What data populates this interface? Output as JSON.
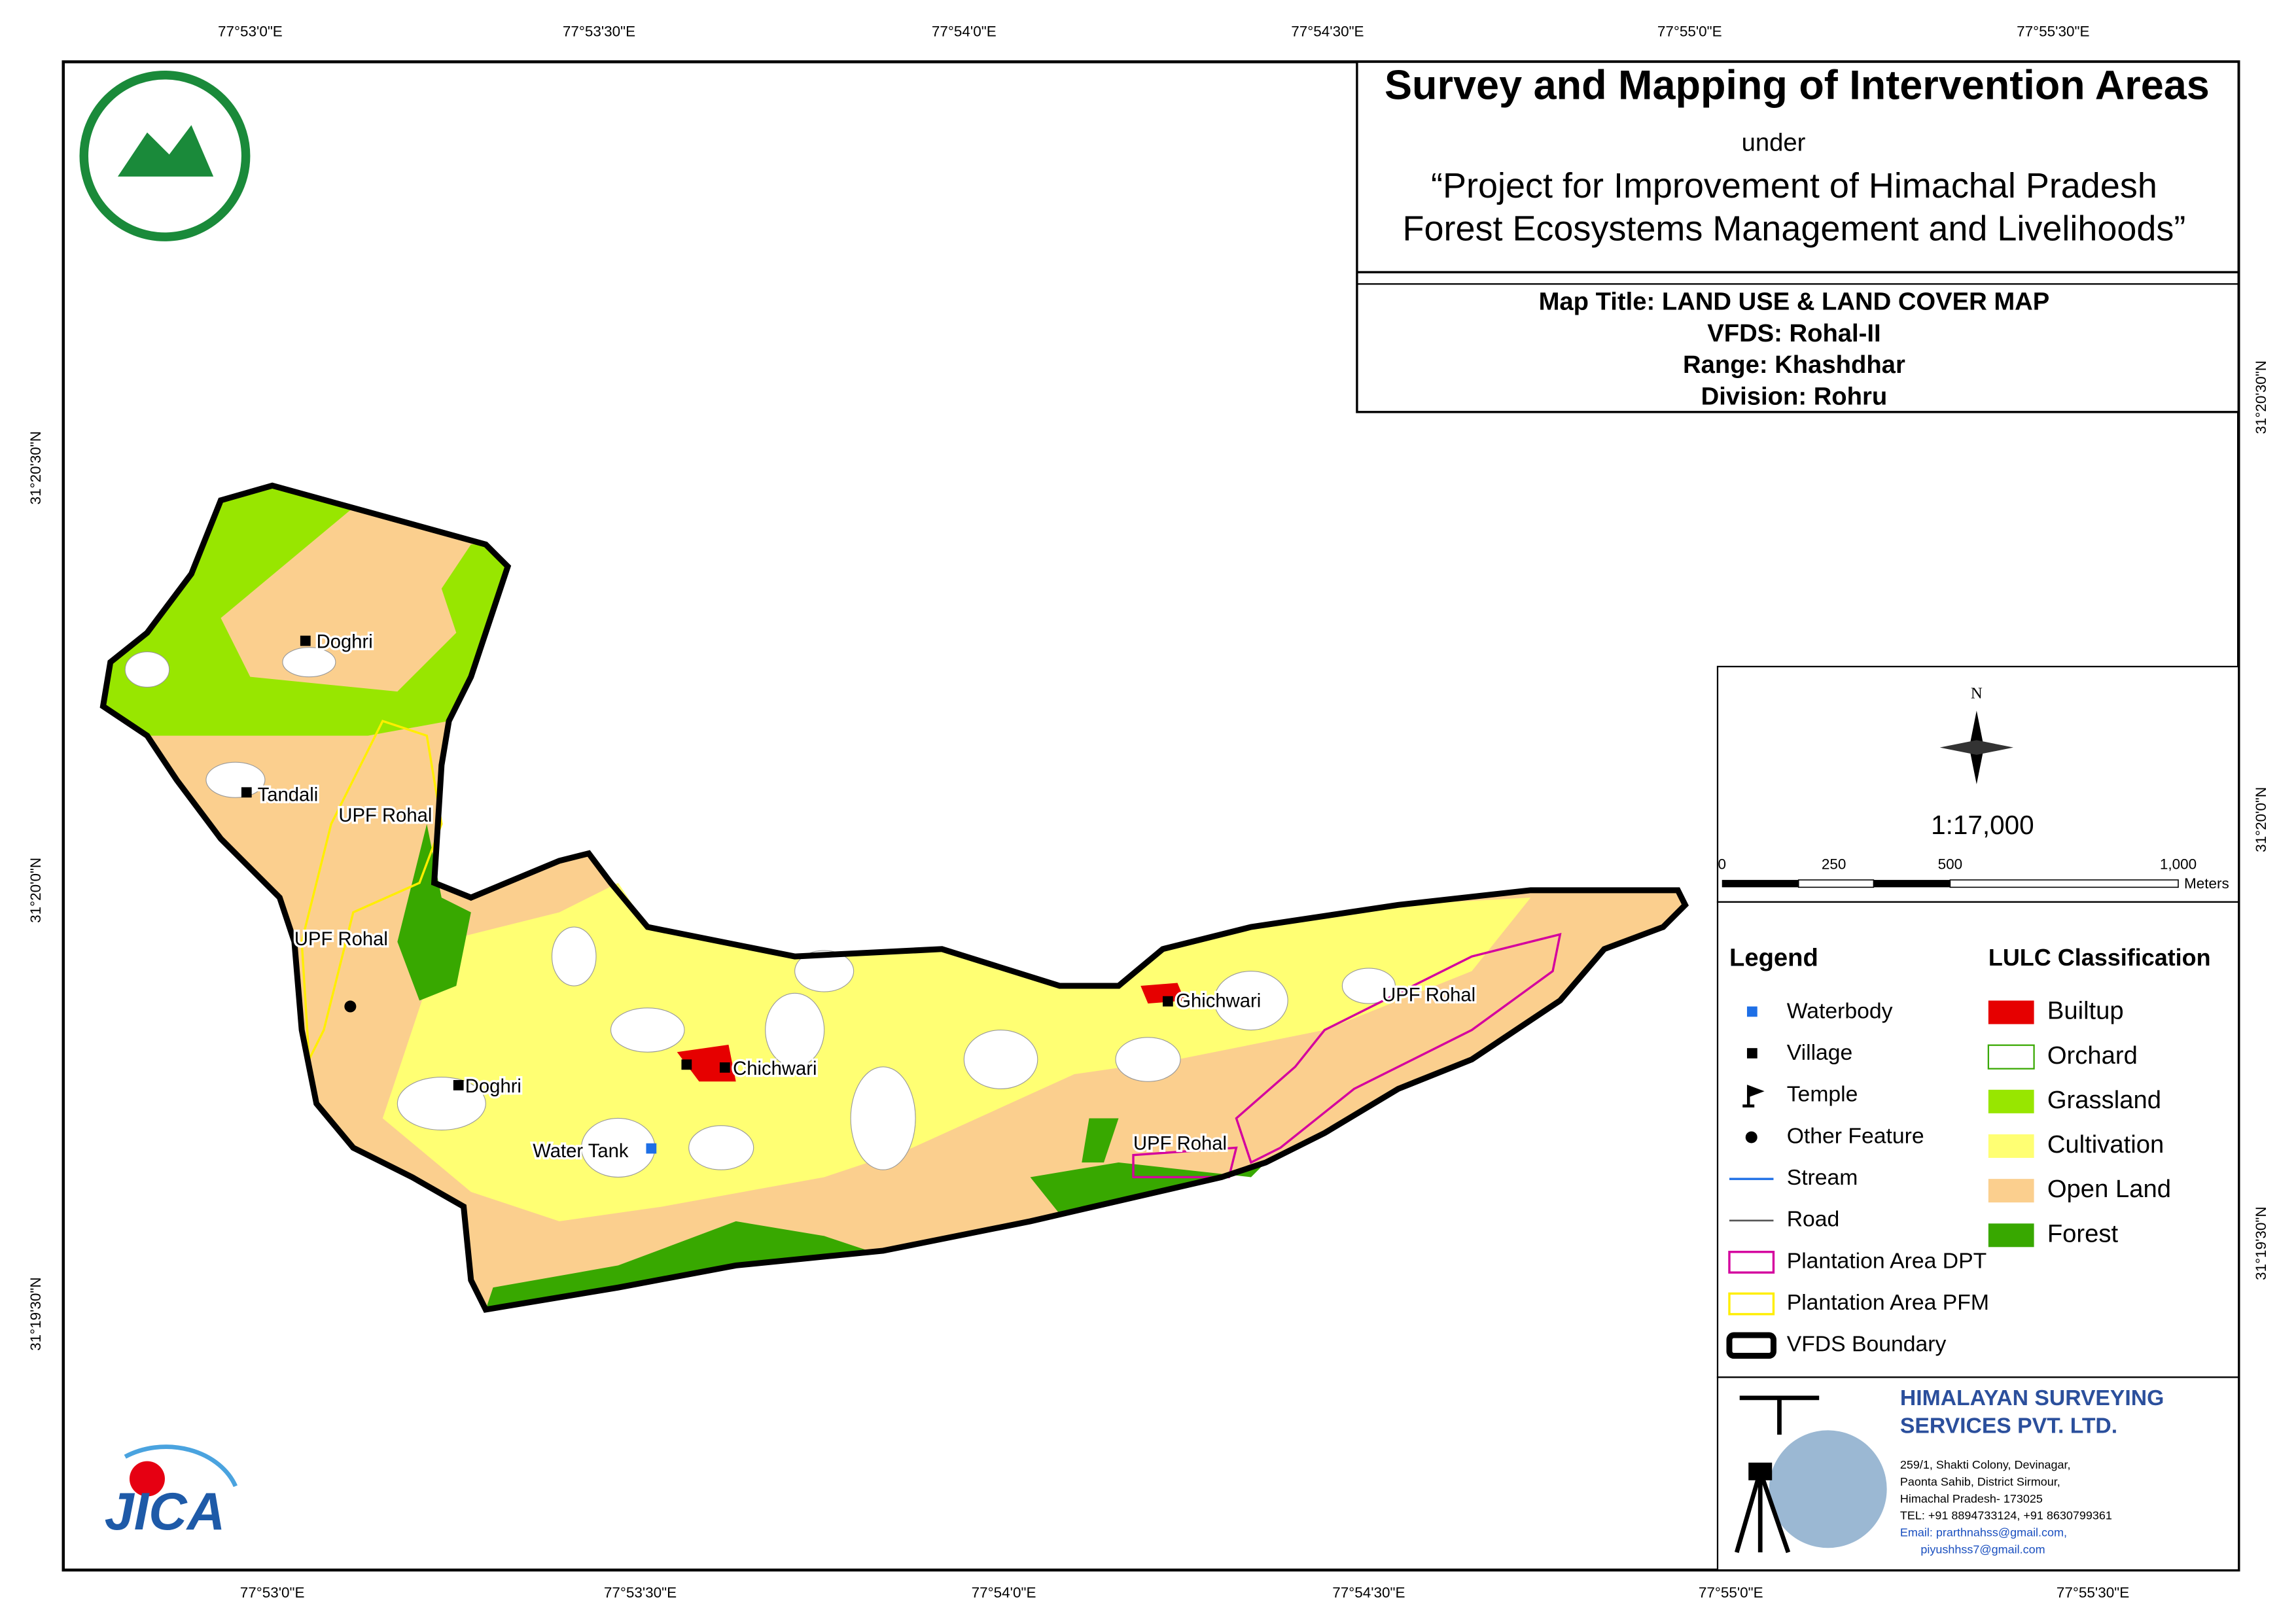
{
  "header": {
    "title": "Survey and Mapping of Intervention Areas",
    "under": "under",
    "project_line1": "“Project for Improvement of Himachal Pradesh",
    "project_line2": "Forest Ecosystems Management and Livelihoods”"
  },
  "map_info": [
    "Map Title: LAND USE & LAND COVER MAP",
    "VFDS: Rohal-II",
    "Range: Khashdhar",
    "Division: Rohru"
  ],
  "top_coords": [
    "77°53'0\"E",
    "77°53'30\"E",
    "77°54'0\"E",
    "77°54'30\"E",
    "77°55'0\"E",
    "77°55'30\"E"
  ],
  "bottom_coords": [
    "77°53'0\"E",
    "77°53'30\"E",
    "77°54'0\"E",
    "77°54'30\"E",
    "77°55'0\"E",
    "77°55'30\"E"
  ],
  "left_coords": [
    "31°20'30\"N",
    "31°20'0\"N",
    "31°19'30\"N"
  ],
  "right_coords": [
    "31°20'30\"N",
    "31°20'0\"N",
    "31°19'30\"N"
  ],
  "scale": {
    "north": "N",
    "ratio": "1:17,000",
    "ticks": [
      "0",
      "250",
      "500",
      "1,000"
    ],
    "unit": "Meters"
  },
  "legend": {
    "title": "Legend",
    "items": [
      "Waterbody",
      "Village",
      "Temple",
      "Other Feature",
      "Stream",
      "Road",
      "Plantation Area DPT",
      "Plantation Area PFM",
      "VFDS Boundary"
    ]
  },
  "lulc": {
    "title": "LULC Classification",
    "items": [
      "Builtup",
      "Orchard",
      "Grassland",
      "Cultivation",
      "Open Land",
      "Forest"
    ]
  },
  "map_labels": [
    "Doghri",
    "Tandali",
    "UPF Rohal",
    "UPF Rohal",
    "Doghri",
    "Chichwari",
    "Water Tank",
    "Ghichwari",
    "UPF Rohal",
    "UPF Rohal"
  ],
  "company": {
    "name1": "HIMALAYAN SURVEYING",
    "name2": "SERVICES PVT. LTD.",
    "address": [
      "259/1, Shakti Colony, Devinagar,",
      "Paonta Sahib, District Sirmour,",
      "Himachal Pradesh- 173025",
      "TEL: +91 8894733124, +91 8630799361",
      "Email: prarthnahss@gmail.com,",
      "piyushhss7@gmail.com"
    ]
  },
  "logo": {
    "jica": "JICA"
  }
}
